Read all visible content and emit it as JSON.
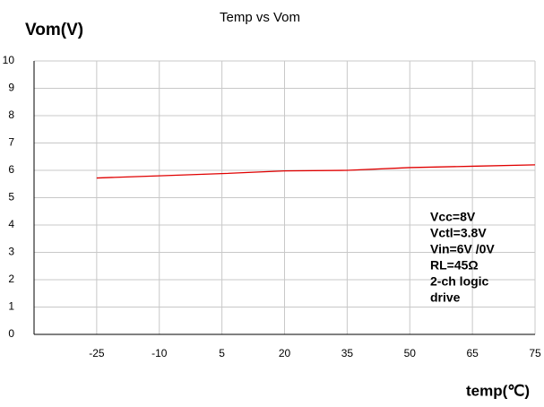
{
  "chart_data": {
    "type": "line",
    "title": "Temp vs Vom",
    "y_label": "Vom(V)",
    "x_label": "temp(℃)",
    "categories": [
      "-25",
      "-10",
      "5",
      "20",
      "35",
      "50",
      "65",
      "75"
    ],
    "series": [
      {
        "name": "Vom",
        "color": "#e00000",
        "values": [
          5.72,
          5.8,
          5.88,
          5.98,
          6.0,
          6.1,
          6.15,
          6.2
        ]
      }
    ],
    "ylim": [
      0,
      10
    ],
    "yticks": [
      0,
      1,
      2,
      3,
      4,
      5,
      6,
      7,
      8,
      9,
      10
    ],
    "grid": true,
    "annotation": [
      "Vcc=8V",
      "Vctl=3.8V",
      "Vin=6V /0V",
      "RL=45Ω",
      "2-ch logic",
      "drive"
    ]
  }
}
